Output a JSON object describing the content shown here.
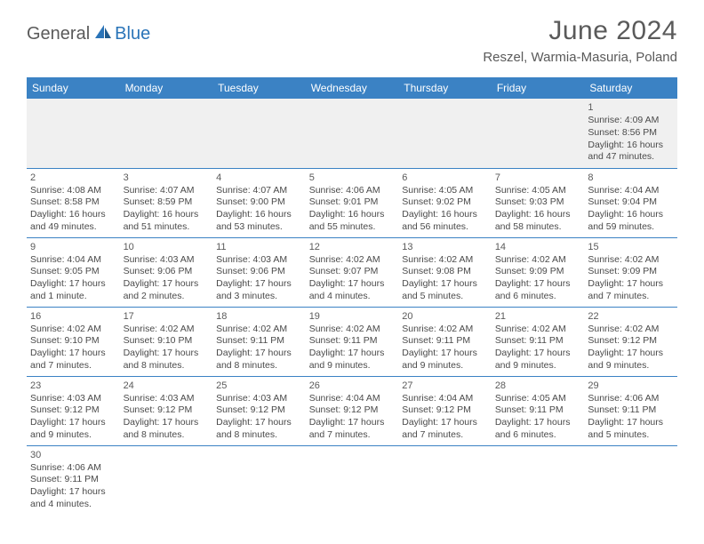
{
  "brand": {
    "general": "General",
    "blue": "Blue"
  },
  "title": "June 2024",
  "location": "Reszel, Warmia-Masuria, Poland",
  "colors": {
    "header_bg": "#3b82c4",
    "header_text": "#ffffff",
    "border": "#3b82c4",
    "text": "#4a4a4a",
    "title": "#5a5a5a",
    "logo_blue": "#2a74b8",
    "empty_bg": "#f0f0f0"
  },
  "dayHeaders": [
    "Sunday",
    "Monday",
    "Tuesday",
    "Wednesday",
    "Thursday",
    "Friday",
    "Saturday"
  ],
  "weeks": [
    [
      null,
      null,
      null,
      null,
      null,
      null,
      {
        "n": "1",
        "sr": "Sunrise: 4:09 AM",
        "ss": "Sunset: 8:56 PM",
        "d1": "Daylight: 16 hours",
        "d2": "and 47 minutes."
      }
    ],
    [
      {
        "n": "2",
        "sr": "Sunrise: 4:08 AM",
        "ss": "Sunset: 8:58 PM",
        "d1": "Daylight: 16 hours",
        "d2": "and 49 minutes."
      },
      {
        "n": "3",
        "sr": "Sunrise: 4:07 AM",
        "ss": "Sunset: 8:59 PM",
        "d1": "Daylight: 16 hours",
        "d2": "and 51 minutes."
      },
      {
        "n": "4",
        "sr": "Sunrise: 4:07 AM",
        "ss": "Sunset: 9:00 PM",
        "d1": "Daylight: 16 hours",
        "d2": "and 53 minutes."
      },
      {
        "n": "5",
        "sr": "Sunrise: 4:06 AM",
        "ss": "Sunset: 9:01 PM",
        "d1": "Daylight: 16 hours",
        "d2": "and 55 minutes."
      },
      {
        "n": "6",
        "sr": "Sunrise: 4:05 AM",
        "ss": "Sunset: 9:02 PM",
        "d1": "Daylight: 16 hours",
        "d2": "and 56 minutes."
      },
      {
        "n": "7",
        "sr": "Sunrise: 4:05 AM",
        "ss": "Sunset: 9:03 PM",
        "d1": "Daylight: 16 hours",
        "d2": "and 58 minutes."
      },
      {
        "n": "8",
        "sr": "Sunrise: 4:04 AM",
        "ss": "Sunset: 9:04 PM",
        "d1": "Daylight: 16 hours",
        "d2": "and 59 minutes."
      }
    ],
    [
      {
        "n": "9",
        "sr": "Sunrise: 4:04 AM",
        "ss": "Sunset: 9:05 PM",
        "d1": "Daylight: 17 hours",
        "d2": "and 1 minute."
      },
      {
        "n": "10",
        "sr": "Sunrise: 4:03 AM",
        "ss": "Sunset: 9:06 PM",
        "d1": "Daylight: 17 hours",
        "d2": "and 2 minutes."
      },
      {
        "n": "11",
        "sr": "Sunrise: 4:03 AM",
        "ss": "Sunset: 9:06 PM",
        "d1": "Daylight: 17 hours",
        "d2": "and 3 minutes."
      },
      {
        "n": "12",
        "sr": "Sunrise: 4:02 AM",
        "ss": "Sunset: 9:07 PM",
        "d1": "Daylight: 17 hours",
        "d2": "and 4 minutes."
      },
      {
        "n": "13",
        "sr": "Sunrise: 4:02 AM",
        "ss": "Sunset: 9:08 PM",
        "d1": "Daylight: 17 hours",
        "d2": "and 5 minutes."
      },
      {
        "n": "14",
        "sr": "Sunrise: 4:02 AM",
        "ss": "Sunset: 9:09 PM",
        "d1": "Daylight: 17 hours",
        "d2": "and 6 minutes."
      },
      {
        "n": "15",
        "sr": "Sunrise: 4:02 AM",
        "ss": "Sunset: 9:09 PM",
        "d1": "Daylight: 17 hours",
        "d2": "and 7 minutes."
      }
    ],
    [
      {
        "n": "16",
        "sr": "Sunrise: 4:02 AM",
        "ss": "Sunset: 9:10 PM",
        "d1": "Daylight: 17 hours",
        "d2": "and 7 minutes."
      },
      {
        "n": "17",
        "sr": "Sunrise: 4:02 AM",
        "ss": "Sunset: 9:10 PM",
        "d1": "Daylight: 17 hours",
        "d2": "and 8 minutes."
      },
      {
        "n": "18",
        "sr": "Sunrise: 4:02 AM",
        "ss": "Sunset: 9:11 PM",
        "d1": "Daylight: 17 hours",
        "d2": "and 8 minutes."
      },
      {
        "n": "19",
        "sr": "Sunrise: 4:02 AM",
        "ss": "Sunset: 9:11 PM",
        "d1": "Daylight: 17 hours",
        "d2": "and 9 minutes."
      },
      {
        "n": "20",
        "sr": "Sunrise: 4:02 AM",
        "ss": "Sunset: 9:11 PM",
        "d1": "Daylight: 17 hours",
        "d2": "and 9 minutes."
      },
      {
        "n": "21",
        "sr": "Sunrise: 4:02 AM",
        "ss": "Sunset: 9:11 PM",
        "d1": "Daylight: 17 hours",
        "d2": "and 9 minutes."
      },
      {
        "n": "22",
        "sr": "Sunrise: 4:02 AM",
        "ss": "Sunset: 9:12 PM",
        "d1": "Daylight: 17 hours",
        "d2": "and 9 minutes."
      }
    ],
    [
      {
        "n": "23",
        "sr": "Sunrise: 4:03 AM",
        "ss": "Sunset: 9:12 PM",
        "d1": "Daylight: 17 hours",
        "d2": "and 9 minutes."
      },
      {
        "n": "24",
        "sr": "Sunrise: 4:03 AM",
        "ss": "Sunset: 9:12 PM",
        "d1": "Daylight: 17 hours",
        "d2": "and 8 minutes."
      },
      {
        "n": "25",
        "sr": "Sunrise: 4:03 AM",
        "ss": "Sunset: 9:12 PM",
        "d1": "Daylight: 17 hours",
        "d2": "and 8 minutes."
      },
      {
        "n": "26",
        "sr": "Sunrise: 4:04 AM",
        "ss": "Sunset: 9:12 PM",
        "d1": "Daylight: 17 hours",
        "d2": "and 7 minutes."
      },
      {
        "n": "27",
        "sr": "Sunrise: 4:04 AM",
        "ss": "Sunset: 9:12 PM",
        "d1": "Daylight: 17 hours",
        "d2": "and 7 minutes."
      },
      {
        "n": "28",
        "sr": "Sunrise: 4:05 AM",
        "ss": "Sunset: 9:11 PM",
        "d1": "Daylight: 17 hours",
        "d2": "and 6 minutes."
      },
      {
        "n": "29",
        "sr": "Sunrise: 4:06 AM",
        "ss": "Sunset: 9:11 PM",
        "d1": "Daylight: 17 hours",
        "d2": "and 5 minutes."
      }
    ],
    [
      {
        "n": "30",
        "sr": "Sunrise: 4:06 AM",
        "ss": "Sunset: 9:11 PM",
        "d1": "Daylight: 17 hours",
        "d2": "and 4 minutes."
      },
      null,
      null,
      null,
      null,
      null,
      null
    ]
  ]
}
